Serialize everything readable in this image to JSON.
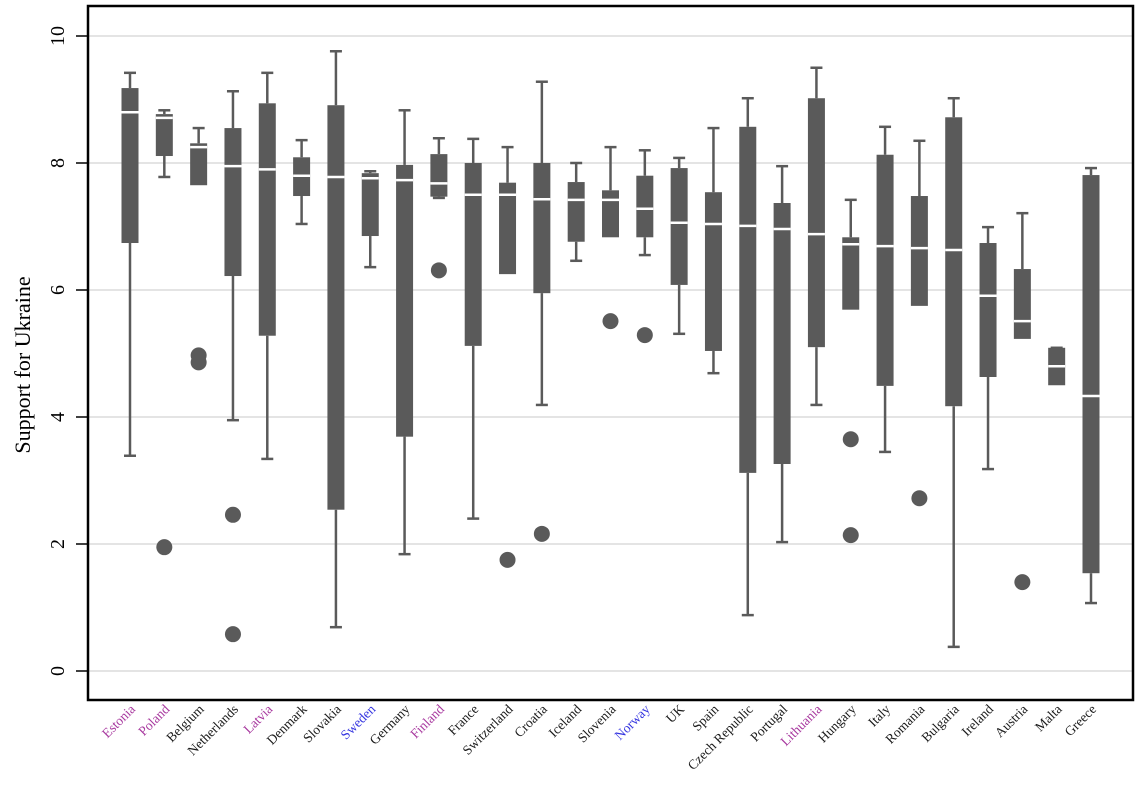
{
  "chart_data": {
    "type": "boxplot",
    "title": "",
    "xlabel": "",
    "ylabel": "Support for Ukraine",
    "ylim": [
      -0.45,
      10.45
    ],
    "yticks": [
      0,
      2,
      4,
      6,
      8,
      10
    ],
    "grid": true,
    "legend": null,
    "colors": {
      "box": "#5a5a5a",
      "median": "#ffffff",
      "grid": "#dcdcdc",
      "frame": "#000000",
      "label_default": "#1a1a1a",
      "label_purple": "#a8399f",
      "label_blue": "#3434e0"
    },
    "categories": [
      "Estonia",
      "Poland",
      "Belgium",
      "Netherlands",
      "Latvia",
      "Denmark",
      "Slovakia",
      "Sweden",
      "Germany",
      "Finland",
      "France",
      "Switzerland",
      "Croatia",
      "Iceland",
      "Slovenia",
      "Norway",
      "UK",
      "Spain",
      "Czech Republic",
      "Portugal",
      "Lithuania",
      "Hungary",
      "Italy",
      "Romania",
      "Bulgaria",
      "Ireland",
      "Austria",
      "Malta",
      "Greece"
    ],
    "label_color_groups": {
      "purple": [
        "Estonia",
        "Poland",
        "Latvia",
        "Finland",
        "Lithuania"
      ],
      "blue": [
        "Sweden",
        "Norway"
      ]
    },
    "boxes": [
      {
        "name": "Estonia",
        "whisker_low": 3.39,
        "q1": 6.74,
        "median": 8.8,
        "q3": 9.18,
        "whisker_high": 9.42,
        "outliers": []
      },
      {
        "name": "Poland",
        "whisker_low": 7.78,
        "q1": 8.11,
        "median": 8.71,
        "q3": 8.77,
        "whisker_high": 8.83,
        "outliers": [
          1.95
        ]
      },
      {
        "name": "Belgium",
        "whisker_low": 7.65,
        "q1": 7.65,
        "median": 8.25,
        "q3": 8.31,
        "whisker_high": 8.55,
        "outliers": [
          4.97,
          4.86
        ]
      },
      {
        "name": "Netherlands",
        "whisker_low": 3.95,
        "q1": 6.22,
        "median": 7.95,
        "q3": 8.55,
        "whisker_high": 9.13,
        "outliers": [
          2.46,
          0.58
        ]
      },
      {
        "name": "Latvia",
        "whisker_low": 3.34,
        "q1": 5.28,
        "median": 7.9,
        "q3": 8.94,
        "whisker_high": 9.42,
        "outliers": []
      },
      {
        "name": "Denmark",
        "whisker_low": 7.04,
        "q1": 7.48,
        "median": 7.8,
        "q3": 8.09,
        "whisker_high": 8.36,
        "outliers": []
      },
      {
        "name": "Slovakia",
        "whisker_low": 0.69,
        "q1": 2.54,
        "median": 7.78,
        "q3": 8.91,
        "whisker_high": 9.76,
        "outliers": []
      },
      {
        "name": "Sweden",
        "whisker_low": 6.36,
        "q1": 6.85,
        "median": 7.76,
        "q3": 7.84,
        "whisker_high": 7.87,
        "outliers": []
      },
      {
        "name": "Germany",
        "whisker_low": 1.84,
        "q1": 3.69,
        "median": 7.73,
        "q3": 7.97,
        "whisker_high": 8.83,
        "outliers": []
      },
      {
        "name": "Finland",
        "whisker_low": 7.45,
        "q1": 7.47,
        "median": 7.68,
        "q3": 8.14,
        "whisker_high": 8.39,
        "outliers": [
          6.31
        ]
      },
      {
        "name": "France",
        "whisker_low": 2.4,
        "q1": 5.12,
        "median": 7.5,
        "q3": 8.0,
        "whisker_high": 8.38,
        "outliers": []
      },
      {
        "name": "Switzerland",
        "whisker_low": 6.25,
        "q1": 6.25,
        "median": 7.5,
        "q3": 7.69,
        "whisker_high": 8.25,
        "outliers": [
          1.75
        ]
      },
      {
        "name": "Croatia",
        "whisker_low": 4.19,
        "q1": 5.95,
        "median": 7.43,
        "q3": 8.0,
        "whisker_high": 9.28,
        "outliers": [
          2.16
        ]
      },
      {
        "name": "Iceland",
        "whisker_low": 6.46,
        "q1": 6.76,
        "median": 7.42,
        "q3": 7.7,
        "whisker_high": 8.0,
        "outliers": []
      },
      {
        "name": "Slovenia",
        "whisker_low": 6.83,
        "q1": 6.83,
        "median": 7.42,
        "q3": 7.57,
        "whisker_high": 8.25,
        "outliers": [
          5.51
        ]
      },
      {
        "name": "Norway",
        "whisker_low": 6.55,
        "q1": 6.83,
        "median": 7.28,
        "q3": 7.8,
        "whisker_high": 8.2,
        "outliers": [
          5.29
        ]
      },
      {
        "name": "UK",
        "whisker_low": 5.31,
        "q1": 6.08,
        "median": 7.06,
        "q3": 7.92,
        "whisker_high": 8.08,
        "outliers": []
      },
      {
        "name": "Spain",
        "whisker_low": 4.69,
        "q1": 5.04,
        "median": 7.04,
        "q3": 7.54,
        "whisker_high": 8.55,
        "outliers": []
      },
      {
        "name": "Czech Republic",
        "whisker_low": 0.88,
        "q1": 3.12,
        "median": 7.01,
        "q3": 8.57,
        "whisker_high": 9.02,
        "outliers": []
      },
      {
        "name": "Portugal",
        "whisker_low": 2.03,
        "q1": 3.26,
        "median": 6.96,
        "q3": 7.37,
        "whisker_high": 7.95,
        "outliers": []
      },
      {
        "name": "Lithuania",
        "whisker_low": 4.19,
        "q1": 5.1,
        "median": 6.88,
        "q3": 9.02,
        "whisker_high": 9.5,
        "outliers": []
      },
      {
        "name": "Hungary",
        "whisker_low": 5.69,
        "q1": 5.69,
        "median": 6.72,
        "q3": 6.83,
        "whisker_high": 7.42,
        "outliers": [
          3.65,
          2.14
        ]
      },
      {
        "name": "Italy",
        "whisker_low": 3.45,
        "q1": 4.49,
        "median": 6.69,
        "q3": 8.13,
        "whisker_high": 8.57,
        "outliers": []
      },
      {
        "name": "Romania",
        "whisker_low": 5.75,
        "q1": 5.75,
        "median": 6.66,
        "q3": 7.48,
        "whisker_high": 8.35,
        "outliers": [
          2.72
        ]
      },
      {
        "name": "Bulgaria",
        "whisker_low": 0.38,
        "q1": 4.17,
        "median": 6.63,
        "q3": 8.72,
        "whisker_high": 9.02,
        "outliers": []
      },
      {
        "name": "Ireland",
        "whisker_low": 3.18,
        "q1": 4.63,
        "median": 5.91,
        "q3": 6.74,
        "whisker_high": 6.99,
        "outliers": []
      },
      {
        "name": "Austria",
        "whisker_low": 5.23,
        "q1": 5.23,
        "median": 5.51,
        "q3": 6.33,
        "whisker_high": 7.21,
        "outliers": [
          1.4
        ]
      },
      {
        "name": "Malta",
        "whisker_low": 4.5,
        "q1": 4.5,
        "median": 4.8,
        "q3": 5.09,
        "whisker_high": 5.09,
        "outliers": []
      },
      {
        "name": "Greece",
        "whisker_low": 1.07,
        "q1": 1.54,
        "median": 4.33,
        "q3": 7.81,
        "whisker_high": 7.92,
        "outliers": []
      }
    ]
  }
}
